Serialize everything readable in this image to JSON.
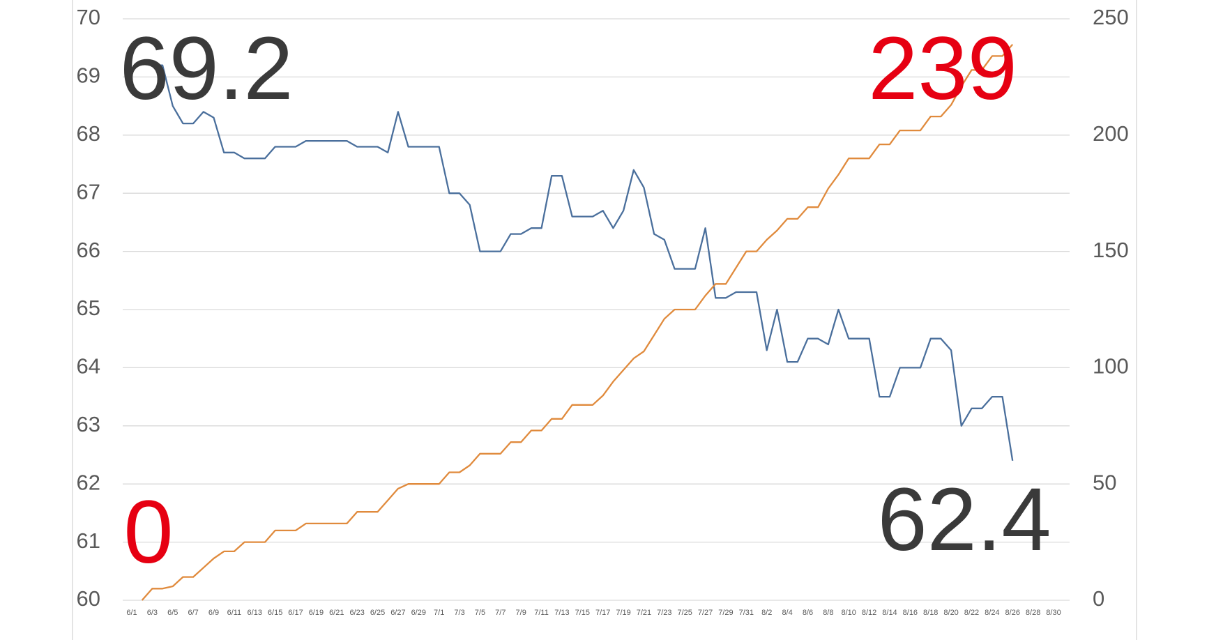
{
  "chart_data": {
    "type": "line",
    "categories": [
      "6/1",
      null,
      "6/3",
      null,
      "6/5",
      null,
      "6/7",
      null,
      "6/9",
      null,
      "6/11",
      null,
      "6/13",
      null,
      "6/15",
      null,
      "6/17",
      null,
      "6/19",
      null,
      "6/21",
      null,
      "6/23",
      null,
      "6/25",
      null,
      "6/27",
      null,
      "6/29",
      null,
      "7/1",
      null,
      "7/3",
      null,
      "7/5",
      null,
      "7/7",
      null,
      "7/9",
      null,
      "7/11",
      null,
      "7/13",
      null,
      "7/15",
      null,
      "7/17",
      null,
      "7/19",
      null,
      "7/21",
      null,
      "7/23",
      null,
      "7/25",
      null,
      "7/27",
      null,
      "7/29",
      null,
      "7/31",
      null,
      "8/2",
      null,
      "8/4",
      null,
      "8/6",
      null,
      "8/8",
      null,
      "8/10",
      null,
      "8/12",
      null,
      "8/14",
      null,
      "8/16",
      null,
      "8/18",
      null,
      "8/20",
      null,
      "8/22",
      null,
      "8/24",
      null,
      "8/26",
      null,
      "8/28",
      null,
      "8/30"
    ],
    "series": [
      {
        "color": "#4a6f9c",
        "values": [
          null,
          null,
          69.2,
          69.2,
          68.5,
          68.2,
          68.2,
          68.4,
          68.3,
          67.7,
          67.7,
          67.6,
          67.6,
          67.6,
          67.8,
          67.8,
          67.8,
          67.9,
          67.9,
          67.9,
          67.9,
          67.9,
          67.8,
          67.8,
          67.8,
          67.7,
          68.4,
          67.8,
          67.8,
          67.8,
          67.8,
          67.0,
          67.0,
          66.8,
          66.0,
          66.0,
          66.0,
          66.3,
          66.3,
          66.4,
          66.4,
          67.3,
          67.3,
          66.6,
          66.6,
          66.6,
          66.7,
          66.4,
          66.7,
          67.4,
          67.1,
          66.3,
          66.2,
          65.7,
          65.7,
          65.7,
          66.4,
          65.2,
          65.2,
          65.3,
          65.3,
          65.3,
          64.3,
          65.0,
          64.1,
          64.1,
          64.5,
          64.5,
          64.4,
          65.0,
          64.5,
          64.5,
          64.5,
          63.5,
          63.5,
          64.0,
          64.0,
          64.0,
          64.5,
          64.5,
          64.3,
          63.0,
          63.3,
          63.3,
          63.5,
          63.5,
          62.4,
          null,
          null,
          null,
          null
        ]
      },
      {
        "color": "#e08a3c",
        "axis": "y2",
        "values": [
          null,
          0,
          5,
          5,
          6,
          10,
          10,
          14,
          18,
          21,
          21,
          25,
          25,
          25,
          30,
          30,
          30,
          33,
          33,
          33,
          33,
          33,
          38,
          38,
          38,
          43,
          48,
          50,
          50,
          50,
          50,
          55,
          55,
          58,
          63,
          63,
          63,
          68,
          68,
          73,
          73,
          78,
          78,
          84,
          84,
          84,
          88,
          94,
          99,
          104,
          107,
          114,
          121,
          125,
          125,
          125,
          131,
          136,
          136,
          143,
          150,
          150,
          155,
          159,
          164,
          164,
          169,
          169,
          177,
          183,
          190,
          190,
          190,
          196,
          196,
          202,
          202,
          202,
          208,
          208,
          213,
          221,
          228,
          228,
          234,
          234,
          239,
          null,
          null,
          null,
          null
        ]
      }
    ],
    "ylim": [
      60,
      70
    ],
    "yticks": [
      60,
      61,
      62,
      63,
      64,
      65,
      66,
      67,
      68,
      69,
      70
    ],
    "y2lim": [
      0,
      250
    ],
    "y2ticks": [
      0,
      50,
      100,
      150,
      200,
      250
    ],
    "grid": true,
    "annotations": [
      {
        "text": "69.2",
        "color": "#3a3a3a"
      },
      {
        "text": "239",
        "color": "#e60012"
      },
      {
        "text": "0",
        "color": "#e60012"
      },
      {
        "text": "62.4",
        "color": "#3a3a3a"
      }
    ]
  }
}
